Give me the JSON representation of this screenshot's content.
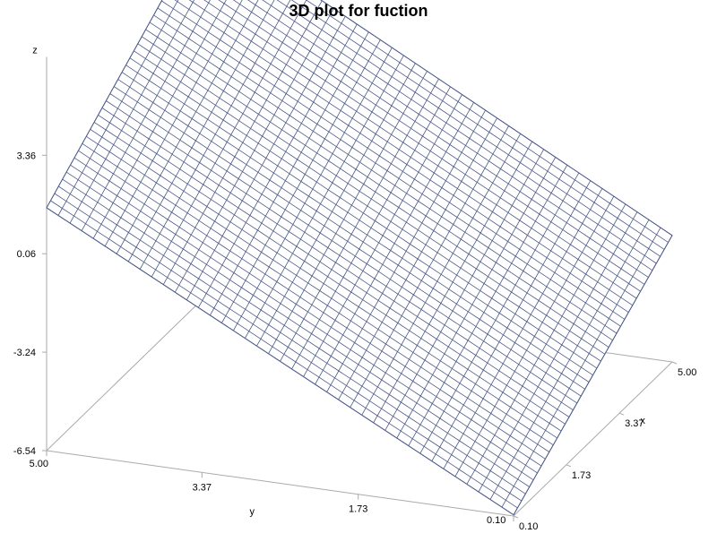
{
  "chart_data": {
    "type": "surface",
    "title": "3D plot for fuction",
    "axes": {
      "x": {
        "label": "x",
        "range": [
          0.1,
          5.0
        ],
        "ticks": [
          "0.10",
          "1.73",
          "3.37",
          "5.00"
        ]
      },
      "y": {
        "label": "y",
        "range": [
          0.1,
          5.0
        ],
        "ticks": [
          "5.00",
          "3.37",
          "1.73",
          "0.10"
        ]
      },
      "z": {
        "label": "z",
        "range": [
          -6.54,
          6.66
        ],
        "ticks": [
          "-6.54",
          "-3.24",
          "0.06",
          "3.36"
        ]
      }
    },
    "surface": {
      "form": "plane",
      "z_at_corners": {
        "x0.10_y0.10": -6.5,
        "x5.00_y0.10": -2.3,
        "x0.10_y5.00": 1.6,
        "x5.00_y5.00": 6.0
      },
      "grid_lines_x": 40,
      "grid_lines_y": 40
    },
    "colors": {
      "mesh": "#4a5a88",
      "axis": "#aaaaaa",
      "text": "#000000"
    }
  }
}
